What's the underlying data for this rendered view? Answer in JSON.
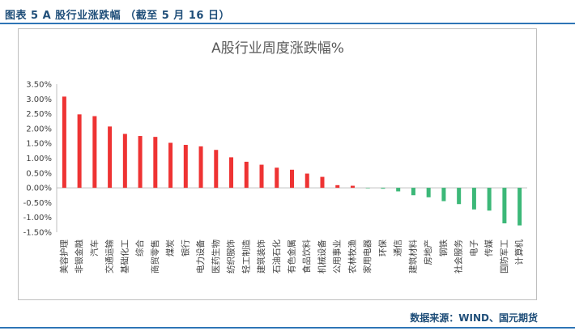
{
  "figure": {
    "caption": "图表 5 A 股行业涨跌幅 （截至 5 月 16 日）",
    "source": "数据来源：WIND、国元期货"
  },
  "colors": {
    "positive": "#ee3333",
    "negative": "#3cb878",
    "axis": "#bfbfbf",
    "text": "#404040",
    "brand": "#1f4e79",
    "rule": "#2e75b6"
  },
  "chart_data": {
    "type": "bar",
    "title": "A股行业周度涨跌幅%",
    "xlabel": "",
    "ylabel": "",
    "ylim": [
      -1.5,
      3.5
    ],
    "ytick_step": 0.5,
    "ytick_format": "percent_2dp",
    "grid": false,
    "legend": "none",
    "categories": [
      "美容护理",
      "非银金融",
      "汽车",
      "交通运输",
      "基础化工",
      "综合",
      "商贸零售",
      "煤炭",
      "银行",
      "电力设备",
      "医药生物",
      "纺织服饰",
      "轻工制造",
      "建筑装饰",
      "石油石化",
      "有色金属",
      "食品饮料",
      "机械设备",
      "公用事业",
      "农林牧渔",
      "家用电器",
      "环保",
      "通信",
      "建筑材料",
      "房地产",
      "钢铁",
      "社会服务",
      "电子",
      "传媒",
      "国防军工",
      "计算机"
    ],
    "values": [
      3.08,
      2.48,
      2.42,
      2.07,
      1.82,
      1.75,
      1.72,
      1.52,
      1.45,
      1.4,
      1.28,
      1.03,
      0.88,
      0.78,
      0.68,
      0.61,
      0.48,
      0.37,
      0.09,
      0.07,
      -0.01,
      -0.03,
      -0.12,
      -0.25,
      -0.32,
      -0.45,
      -0.55,
      -0.73,
      -0.77,
      -1.2,
      -1.27
    ]
  }
}
